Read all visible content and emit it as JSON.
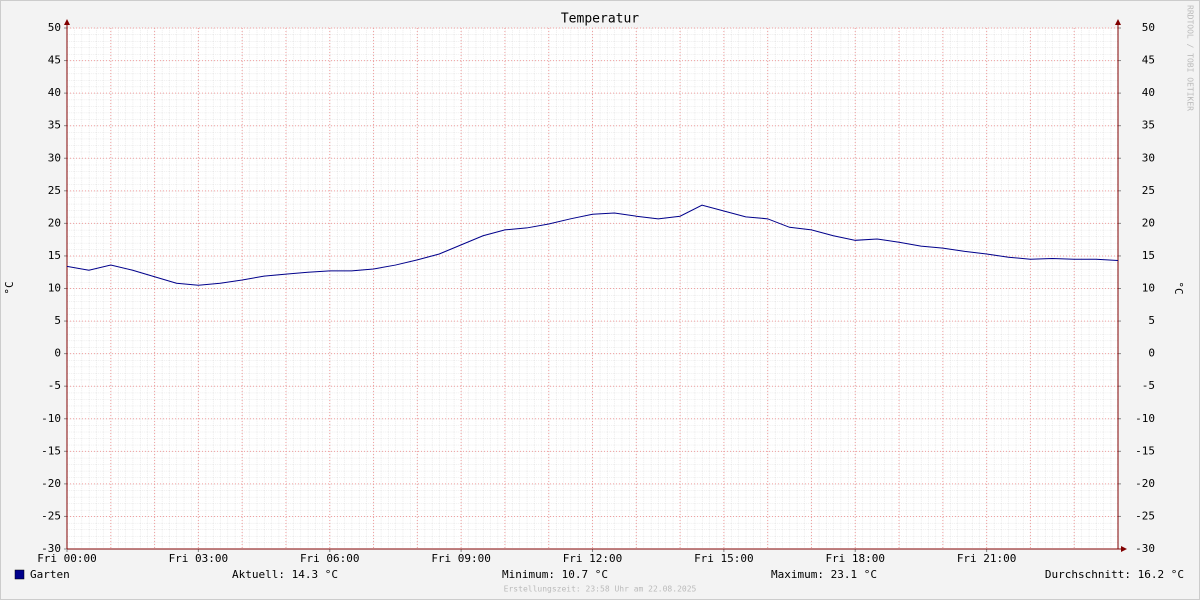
{
  "chart_data": {
    "type": "line",
    "title": "Temperatur",
    "y_label": "°C",
    "watermark": "RRDTOOL / TOBI OETIKER",
    "x": [
      0,
      0.5,
      1,
      1.5,
      2,
      2.5,
      3,
      3.5,
      4,
      4.5,
      5,
      5.5,
      6,
      6.5,
      7,
      7.5,
      8,
      8.5,
      9,
      9.5,
      10,
      10.5,
      11,
      11.5,
      12,
      12.5,
      13,
      13.5,
      14,
      14.5,
      15,
      15.5,
      16,
      16.5,
      17,
      17.5,
      18,
      18.5,
      19,
      19.5,
      20,
      20.5,
      21,
      21.5,
      22,
      22.5,
      23,
      23.5,
      24
    ],
    "xlim": [
      0,
      24
    ],
    "xticks": [
      {
        "value": 0,
        "label": "Fri 00:00"
      },
      {
        "value": 3,
        "label": "Fri 03:00"
      },
      {
        "value": 6,
        "label": "Fri 06:00"
      },
      {
        "value": 9,
        "label": "Fri 09:00"
      },
      {
        "value": 12,
        "label": "Fri 12:00"
      },
      {
        "value": 15,
        "label": "Fri 15:00"
      },
      {
        "value": 18,
        "label": "Fri 18:00"
      },
      {
        "value": 21,
        "label": "Fri 21:00"
      }
    ],
    "ylim": [
      -30,
      50
    ],
    "yticks": [
      -30,
      -25,
      -20,
      -15,
      -10,
      -5,
      0,
      5,
      10,
      15,
      20,
      25,
      30,
      35,
      40,
      45,
      50
    ],
    "grid": true,
    "series": [
      {
        "name": "Garten",
        "color": "#00008b",
        "values": [
          13.4,
          12.8,
          13.6,
          12.8,
          11.8,
          10.8,
          10.5,
          10.8,
          11.3,
          11.9,
          12.2,
          12.5,
          12.7,
          12.7,
          13.0,
          13.6,
          14.4,
          15.3,
          16.7,
          18.1,
          19.0,
          19.3,
          19.9,
          20.7,
          21.4,
          21.6,
          21.1,
          20.7,
          21.1,
          22.8,
          21.9,
          21.0,
          20.7,
          19.4,
          19.0,
          18.1,
          17.4,
          17.6,
          17.1,
          16.5,
          16.2,
          15.7,
          15.3,
          14.8,
          14.5,
          14.6,
          14.5,
          14.5,
          14.3
        ]
      }
    ],
    "legend_stats": [
      "Aktuell: 14.3 °C",
      "Minimum: 10.7 °C",
      "Maximum: 23.1 °C",
      "Durchschnitt: 16.2 °C"
    ],
    "footer": "Erstellungszeit: 23:58 Uhr am 22.08.2025"
  }
}
